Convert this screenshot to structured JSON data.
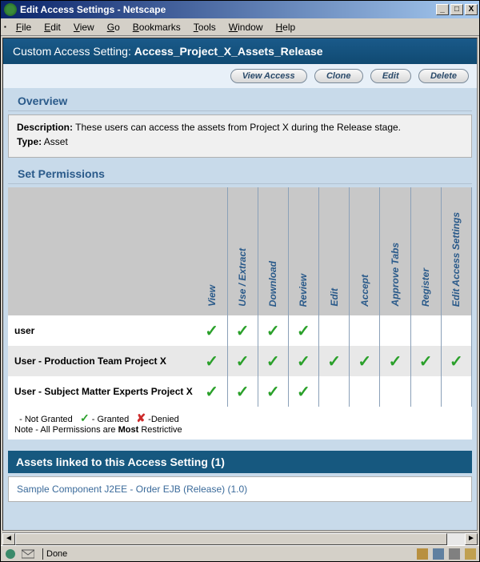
{
  "window": {
    "title": "Edit Access Settings - Netscape",
    "min_glyph": "_",
    "max_glyph": "□",
    "close_glyph": "X"
  },
  "menubar": {
    "items": [
      "File",
      "Edit",
      "View",
      "Go",
      "Bookmarks",
      "Tools",
      "Window",
      "Help"
    ]
  },
  "header": {
    "prefix": "Custom Access Setting: ",
    "name": "Access_Project_X_Assets_Release"
  },
  "actions": {
    "view_access": "View Access",
    "clone": "Clone",
    "edit": "Edit",
    "delete": "Delete"
  },
  "overview": {
    "heading": "Overview",
    "description_label": "Description:",
    "description_text": "These users can access the assets from Project X during the Release stage.",
    "type_label": "Type:",
    "type_value": "Asset"
  },
  "permissions": {
    "heading": "Set Permissions",
    "columns": [
      "View",
      "Use / Extract",
      "Download",
      "Review",
      "Edit",
      "Accept",
      "Approve Tabs",
      "Register",
      "Edit Access Settings"
    ],
    "rows": [
      {
        "label": "user",
        "grants": [
          true,
          true,
          true,
          true,
          false,
          false,
          false,
          false,
          false
        ],
        "alt": false
      },
      {
        "label": "User - Production Team Project X",
        "grants": [
          true,
          true,
          true,
          true,
          true,
          true,
          true,
          true,
          true
        ],
        "alt": true
      },
      {
        "label": "User - Subject Matter Experts Project X",
        "grants": [
          true,
          true,
          true,
          true,
          false,
          false,
          false,
          false,
          false
        ],
        "alt": false
      }
    ],
    "legend": {
      "not_granted": "- Not Granted",
      "granted": "- Granted",
      "denied": "-Denied",
      "note_prefix": "Note - All Permissions are ",
      "note_bold": "Most",
      "note_suffix": " Restrictive"
    },
    "check_glyph": "✓",
    "deny_glyph": "✘"
  },
  "assets": {
    "heading": "Assets linked to this Access Setting (1)",
    "items": [
      "Sample Component J2EE - Order EJB (Release) (1.0)"
    ]
  },
  "statusbar": {
    "text": "Done"
  },
  "colors": {
    "header_bg": "#16587f",
    "page_bg": "#c8daea",
    "heading_text": "#2a5a8a",
    "check": "#2aa02a",
    "deny": "#cc2a2a"
  }
}
